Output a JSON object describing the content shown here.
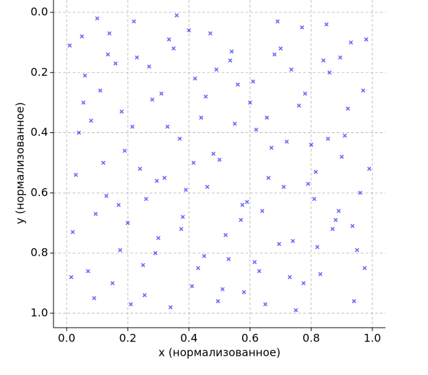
{
  "chart_data": {
    "type": "scatter",
    "xlabel": "x (нормализованное)",
    "ylabel": "y (нормализованное)",
    "x": [
      0.01,
      0.03,
      0.05,
      0.08,
      0.1,
      0.12,
      0.15,
      0.18,
      0.2,
      0.23,
      0.26,
      0.29,
      0.31,
      0.34,
      0.37,
      0.4,
      0.43,
      0.46,
      0.49,
      0.52,
      0.55,
      0.58,
      0.61,
      0.64,
      0.67,
      0.7,
      0.73,
      0.76,
      0.79,
      0.82,
      0.85,
      0.88,
      0.91,
      0.94,
      0.97,
      0.99,
      0.02,
      0.06,
      0.09,
      0.13,
      0.16,
      0.19,
      0.22,
      0.25,
      0.28,
      0.32,
      0.35,
      0.38,
      0.41,
      0.44,
      0.47,
      0.5,
      0.53,
      0.56,
      0.59,
      0.62,
      0.65,
      0.68,
      0.71,
      0.74,
      0.77,
      0.8,
      0.83,
      0.86,
      0.89,
      0.92,
      0.95,
      0.98,
      0.04,
      0.07,
      0.11,
      0.14,
      0.17,
      0.21,
      0.24,
      0.27,
      0.3,
      0.33,
      0.36,
      0.39,
      0.42,
      0.45,
      0.48,
      0.51,
      0.54,
      0.57,
      0.6,
      0.63,
      0.66,
      0.69,
      0.72,
      0.75,
      0.78,
      0.81,
      0.84,
      0.87,
      0.9,
      0.93,
      0.96,
      0.015,
      0.055,
      0.095,
      0.135,
      0.175,
      0.215,
      0.255,
      0.295,
      0.335,
      0.375,
      0.415,
      0.455,
      0.495,
      0.535,
      0.575,
      0.615,
      0.655,
      0.695,
      0.735,
      0.775,
      0.815,
      0.855,
      0.895,
      0.935,
      0.975
    ],
    "values": [
      0.11,
      0.54,
      0.08,
      0.36,
      0.02,
      0.5,
      0.9,
      0.33,
      0.7,
      0.15,
      0.62,
      0.8,
      0.27,
      0.98,
      0.42,
      0.06,
      0.85,
      0.58,
      0.19,
      0.74,
      0.37,
      0.93,
      0.23,
      0.66,
      0.45,
      0.12,
      0.88,
      0.31,
      0.57,
      0.78,
      0.04,
      0.69,
      0.41,
      0.96,
      0.26,
      0.52,
      0.73,
      0.21,
      0.95,
      0.61,
      0.17,
      0.46,
      0.03,
      0.84,
      0.29,
      0.55,
      0.12,
      0.68,
      0.91,
      0.35,
      0.07,
      0.49,
      0.82,
      0.24,
      0.63,
      0.39,
      0.97,
      0.14,
      0.58,
      0.76,
      0.05,
      0.44,
      0.87,
      0.2,
      0.66,
      0.32,
      0.79,
      0.09,
      0.4,
      0.86,
      0.26,
      0.07,
      0.64,
      0.97,
      0.52,
      0.18,
      0.75,
      0.38,
      0.01,
      0.59,
      0.22,
      0.81,
      0.47,
      0.92,
      0.13,
      0.69,
      0.3,
      0.86,
      0.55,
      0.03,
      0.43,
      0.99,
      0.27,
      0.62,
      0.16,
      0.72,
      0.48,
      0.1,
      0.6,
      0.88,
      0.3,
      0.67,
      0.14,
      0.79,
      0.38,
      0.94,
      0.56,
      0.09,
      0.72,
      0.5,
      0.28,
      0.96,
      0.16,
      0.64,
      0.83,
      0.35,
      0.77,
      0.19,
      0.9,
      0.53,
      0.42,
      0.15,
      0.71,
      0.85
    ],
    "color": "#0000ff",
    "xlim": [
      -0.043,
      1.043
    ],
    "ylim": [
      1.048,
      -0.041
    ],
    "xticks": [
      {
        "value": 0,
        "label": "0.0"
      },
      0.2,
      0.4,
      0.6,
      0.8,
      {
        "value": 1,
        "label": "1.0"
      }
    ],
    "yticks": [
      {
        "value": 0,
        "label": "0.0"
      },
      0.2,
      0.4,
      0.6,
      0.8,
      {
        "value": 1,
        "label": "1.0"
      }
    ],
    "grid": true
  }
}
